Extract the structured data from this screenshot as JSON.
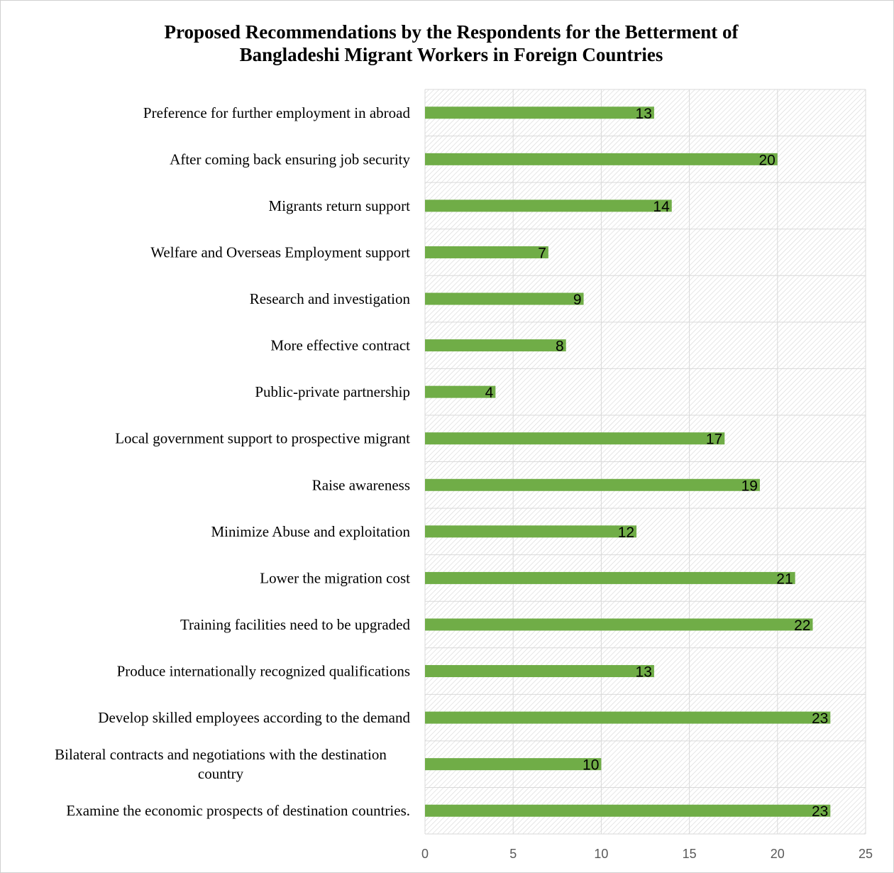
{
  "chart_data": {
    "type": "bar",
    "orientation": "horizontal",
    "title": "Proposed Recommendations by the Respondents for the Betterment of Bangladeshi Migrant Workers in Foreign Countries",
    "title_lines": [
      "Proposed Recommendations by the Respondents for the Betterment of",
      "Bangladeshi Migrant Workers in Foreign Countries"
    ],
    "categories": [
      "Preference for further employment in abroad",
      "After coming back ensuring job security",
      "Migrants return support",
      "Welfare and Overseas Employment support",
      "Research and investigation",
      "More effective contract",
      "Public-private partnership",
      "Local government support to prospective migrant",
      "Raise awareness",
      "Minimize Abuse and exploitation",
      "Lower the migration cost",
      "Training facilities need to be upgraded",
      "Produce internationally recognized qualifications",
      "Develop skilled employees according to the demand",
      "Bilateral contracts and negotiations with the destination country",
      "Examine the economic prospects of destination countries."
    ],
    "category_lines": [
      [
        "Preference for further employment in abroad"
      ],
      [
        "After coming back ensuring job security"
      ],
      [
        "Migrants return support"
      ],
      [
        "Welfare and Overseas Employment support"
      ],
      [
        "Research and investigation"
      ],
      [
        "More effective contract"
      ],
      [
        "Public-private partnership"
      ],
      [
        "Local government support to prospective migrant"
      ],
      [
        "Raise awareness"
      ],
      [
        "Minimize Abuse and exploitation"
      ],
      [
        "Lower the migration cost"
      ],
      [
        "Training facilities need to be upgraded"
      ],
      [
        "Produce internationally recognized qualifications"
      ],
      [
        "Develop skilled employees according to the demand"
      ],
      [
        "Bilateral contracts and negotiations with the destination",
        "country"
      ],
      [
        "Examine the economic prospects of destination countries."
      ]
    ],
    "values": [
      13,
      20,
      14,
      7,
      9,
      8,
      4,
      17,
      19,
      12,
      21,
      22,
      13,
      23,
      10,
      23
    ],
    "xlim": [
      0,
      25
    ],
    "x_ticks": [
      0,
      5,
      10,
      15,
      20,
      25
    ],
    "grid": true,
    "colors": {
      "bar": "#70ad47",
      "grid": "#d9d9d9",
      "hatch": "#d6d6d6"
    }
  }
}
